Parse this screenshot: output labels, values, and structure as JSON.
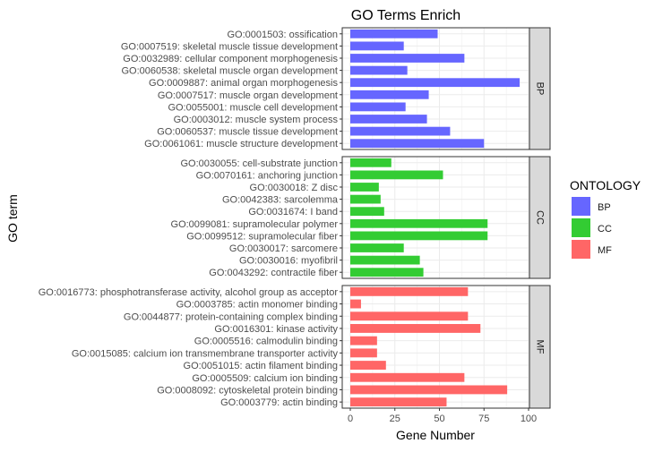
{
  "chart_data": {
    "type": "bar",
    "orientation": "horizontal",
    "title": "GO Terms Enrich",
    "xlabel": "Gene Number",
    "ylabel": "GO term",
    "xlim": [
      0,
      100
    ],
    "xticks": [
      0,
      25,
      50,
      75,
      100
    ],
    "grid": true,
    "legend": {
      "title": "ONTOLOGY",
      "position": "right",
      "items": [
        {
          "label": "BP",
          "color": "#6666ff"
        },
        {
          "label": "CC",
          "color": "#33cc33"
        },
        {
          "label": "MF",
          "color": "#ff6666"
        }
      ]
    },
    "facets": [
      {
        "name": "BP",
        "color": "#6666ff",
        "categories": [
          "GO:0001503: ossification",
          "GO:0007519: skeletal muscle tissue development",
          "GO:0032989: cellular component morphogenesis",
          "GO:0060538: skeletal muscle organ development",
          "GO:0009887: animal organ morphogenesis",
          "GO:0007517: muscle organ development",
          "GO:0055001: muscle cell development",
          "GO:0003012: muscle system process",
          "GO:0060537: muscle tissue development",
          "GO:0061061: muscle structure development"
        ],
        "values": [
          49,
          30,
          64,
          32,
          95,
          44,
          31,
          43,
          56,
          75
        ]
      },
      {
        "name": "CC",
        "color": "#33cc33",
        "categories": [
          "GO:0030055: cell-substrate junction",
          "GO:0070161: anchoring junction",
          "GO:0030018: Z disc",
          "GO:0042383: sarcolemma",
          "GO:0031674: I band",
          "GO:0099081: supramolecular polymer",
          "GO:0099512: supramolecular fiber",
          "GO:0030017: sarcomere",
          "GO:0030016: myofibril",
          "GO:0043292: contractile fiber"
        ],
        "values": [
          23,
          52,
          16,
          17,
          19,
          77,
          77,
          30,
          39,
          41
        ]
      },
      {
        "name": "MF",
        "color": "#ff6666",
        "categories": [
          "GO:0016773: phosphotransferase activity, alcohol group as acceptor",
          "GO:0003785: actin monomer binding",
          "GO:0044877: protein-containing complex binding",
          "GO:0016301: kinase activity",
          "GO:0005516: calmodulin binding",
          "GO:0015085: calcium ion transmembrane transporter activity",
          "GO:0051015: actin filament binding",
          "GO:0005509: calcium ion binding",
          "GO:0008092: cytoskeletal protein binding",
          "GO:0003779: actin binding"
        ],
        "values": [
          66,
          6,
          66,
          73,
          15,
          15,
          20,
          64,
          88,
          54
        ]
      }
    ]
  }
}
